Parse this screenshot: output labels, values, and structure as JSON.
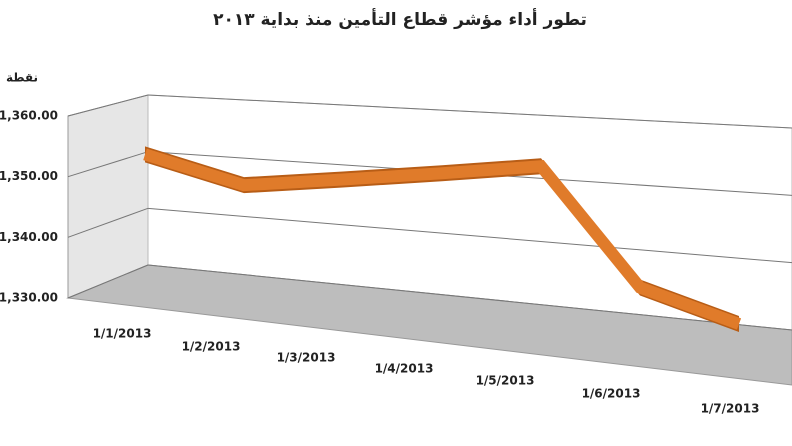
{
  "chart_data": {
    "type": "line",
    "title": "تطور أداء مؤشر قطاع التأمين منذ بداية ٢٠١٣",
    "y_label": "نقطة",
    "categories": [
      "1/1/2013",
      "1/2/2013",
      "1/3/2013",
      "1/4/2013",
      "1/5/2013",
      "1/6/2013",
      "1/7/2013"
    ],
    "series": [
      {
        "name": "نقطة",
        "color": "#e07b2a",
        "values": [
          1352,
          1348,
          1350,
          1352,
          1354,
          1337,
          1333
        ]
      }
    ],
    "ylim": [
      1330,
      1360
    ],
    "yticks": [
      {
        "value": 1330,
        "label": "1,330.00"
      },
      {
        "value": 1340,
        "label": "1,340.00"
      },
      {
        "value": 1350,
        "label": "1,350.00"
      },
      {
        "value": 1360,
        "label": "1,360.00"
      }
    ],
    "grid": true
  }
}
